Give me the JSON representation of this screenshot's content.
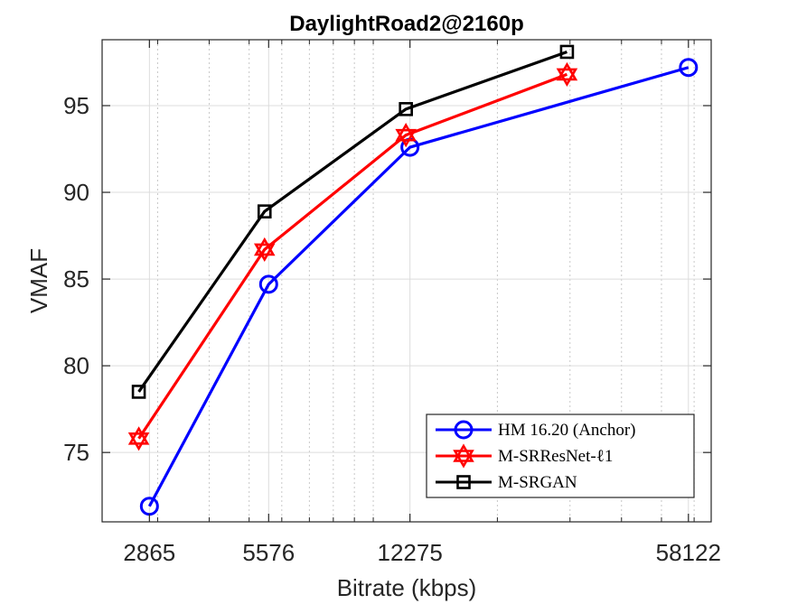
{
  "chart_data": {
    "type": "line",
    "title": "DaylightRoad2@2160p",
    "xlabel": "Bitrate (kbps)",
    "ylabel": "VMAF",
    "x_scale": "log",
    "xlim": [
      2200,
      66000
    ],
    "ylim": [
      71,
      98.8
    ],
    "x_ticks": [
      2865,
      5576,
      12275,
      58122
    ],
    "x_tick_labels": [
      "2865",
      "5576",
      "12275",
      "58122"
    ],
    "y_ticks": [
      75,
      80,
      85,
      90,
      95
    ],
    "y_tick_labels": [
      "75",
      "80",
      "85",
      "90",
      "95"
    ],
    "grid": true,
    "minor_grid_x": true,
    "legend_position": "bottom-right",
    "series": [
      {
        "name": "HM 16.20 (Anchor)",
        "color": "#0000ff",
        "marker": "circle",
        "x": [
          2865,
          5576,
          12275,
          58122
        ],
        "y": [
          71.9,
          84.7,
          92.6,
          97.2
        ]
      },
      {
        "name": "M-SRResNet-ℓ1",
        "color": "#ff0000",
        "marker": "hexagram",
        "x": [
          2700,
          5450,
          12000,
          29500
        ],
        "y": [
          75.8,
          86.7,
          93.3,
          96.8
        ]
      },
      {
        "name": "M-SRGAN",
        "color": "#000000",
        "marker": "square",
        "x": [
          2700,
          5450,
          12000,
          29500
        ],
        "y": [
          78.5,
          88.9,
          94.8,
          98.1
        ]
      }
    ]
  }
}
